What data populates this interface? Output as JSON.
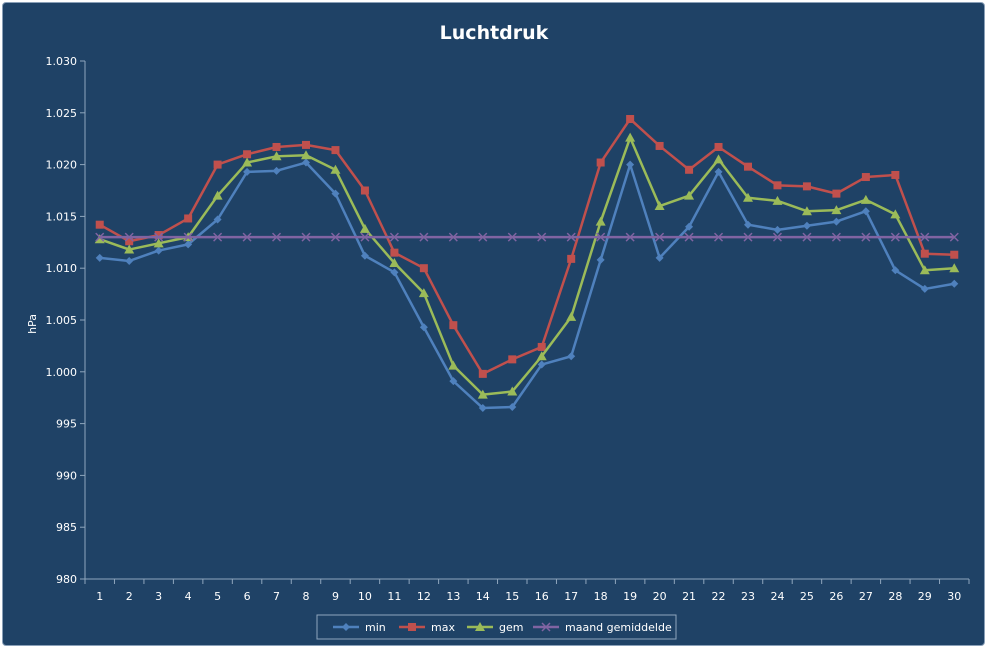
{
  "chart_data": {
    "type": "line",
    "title": "Luchtdruk",
    "xlabel": "",
    "ylabel": "hPa",
    "ylim": [
      980,
      1030
    ],
    "yticks": [
      980,
      985,
      990,
      995,
      1000,
      1005,
      1010,
      1015,
      1020,
      1025,
      1030
    ],
    "ytick_labels": [
      "980",
      "985",
      "990",
      "995",
      "1.000",
      "1.005",
      "1.010",
      "1.015",
      "1.020",
      "1.025",
      "1.030"
    ],
    "categories": [
      "1",
      "2",
      "3",
      "4",
      "5",
      "6",
      "7",
      "8",
      "9",
      "10",
      "11",
      "12",
      "13",
      "14",
      "15",
      "16",
      "17",
      "18",
      "19",
      "20",
      "21",
      "22",
      "23",
      "24",
      "25",
      "26",
      "27",
      "28",
      "29",
      "30"
    ],
    "grid": false,
    "legend_position": "bottom",
    "series": [
      {
        "name": "min",
        "color": "#4f81bd",
        "marker": "diamond",
        "values": [
          1011.0,
          1010.7,
          1011.7,
          1012.3,
          1014.7,
          1019.3,
          1019.4,
          1020.2,
          1017.2,
          1011.2,
          1009.6,
          1004.3,
          999.1,
          996.5,
          996.6,
          1000.7,
          1001.5,
          1010.8,
          1020.0,
          1011.0,
          1014.0,
          1019.3,
          1014.2,
          1013.7,
          1014.1,
          1014.5,
          1015.5,
          1009.8,
          1008.0,
          1008.5
        ]
      },
      {
        "name": "max",
        "color": "#c0504d",
        "marker": "square",
        "values": [
          1014.2,
          1012.6,
          1013.2,
          1014.8,
          1020.0,
          1021.0,
          1021.7,
          1021.9,
          1021.4,
          1017.5,
          1011.5,
          1010.0,
          1004.5,
          999.8,
          1001.2,
          1002.4,
          1010.9,
          1020.2,
          1024.4,
          1021.8,
          1019.5,
          1021.7,
          1019.8,
          1018.0,
          1017.9,
          1017.2,
          1018.8,
          1019.0,
          1011.4,
          1011.3
        ]
      },
      {
        "name": "gem",
        "color": "#9bbb59",
        "marker": "triangle",
        "values": [
          1012.8,
          1011.8,
          1012.4,
          1013.0,
          1017.0,
          1020.2,
          1020.8,
          1020.9,
          1019.5,
          1013.8,
          1010.5,
          1007.6,
          1000.6,
          997.8,
          998.1,
          1001.5,
          1005.3,
          1014.5,
          1022.6,
          1016.0,
          1017.0,
          1020.5,
          1016.8,
          1016.5,
          1015.5,
          1015.6,
          1016.6,
          1015.2,
          1009.8,
          1010.0
        ]
      },
      {
        "name": "maand gemiddelde",
        "color": "#8064a2",
        "marker": "x",
        "values": [
          1013.0,
          1013.0,
          1013.0,
          1013.0,
          1013.0,
          1013.0,
          1013.0,
          1013.0,
          1013.0,
          1013.0,
          1013.0,
          1013.0,
          1013.0,
          1013.0,
          1013.0,
          1013.0,
          1013.0,
          1013.0,
          1013.0,
          1013.0,
          1013.0,
          1013.0,
          1013.0,
          1013.0,
          1013.0,
          1013.0,
          1013.0,
          1013.0,
          1013.0,
          1013.0
        ]
      }
    ]
  }
}
